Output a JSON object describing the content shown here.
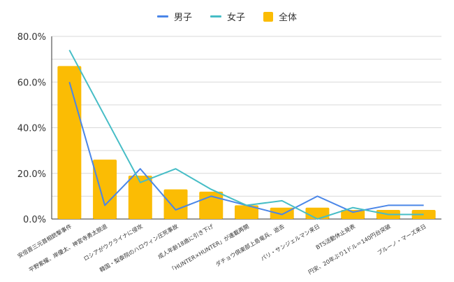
{
  "colors": {
    "male": "#4a86e8",
    "female": "#46bdc6",
    "total": "#fbbc04",
    "grid": "#d9d9d9",
    "axis": "#333333"
  },
  "legend": {
    "male": "男子",
    "female": "女子",
    "total": "全体"
  },
  "chart_data": {
    "type": "bar",
    "title": "",
    "xlabel": "",
    "ylabel": "",
    "ylim": [
      0,
      80
    ],
    "yticks": [
      "0.0%",
      "20.0%",
      "40.0%",
      "60.0%",
      "80.0%"
    ],
    "grid": true,
    "legend_position": "top-center",
    "categories": [
      "安倍晋三元首相銃撃事件",
      "平野紫耀、岸優太、神宮寺勇太脱退",
      "ロシアがウクライナに侵攻",
      "韓国・梨泰院のハロウィン圧死事故",
      "成人年齢18歳に引き下げ",
      "「HUNTER×HUNTER」が連載再開",
      "ダチョウ倶楽部上島竜兵、逝去",
      "パリ・サンジェルマン来日",
      "BTS活動休止発表",
      "円安、20年ぶり1ドル＝140円台突破",
      "ブルーノ・マーズ来日"
    ],
    "series": [
      {
        "name": "全体",
        "kind": "bar",
        "values": [
          67,
          26,
          19,
          13,
          12,
          6,
          5,
          5,
          4,
          4,
          4
        ]
      },
      {
        "name": "男子",
        "kind": "line",
        "values": [
          60,
          6,
          22,
          4,
          10,
          6,
          2,
          10,
          3,
          6,
          6
        ]
      },
      {
        "name": "女子",
        "kind": "line",
        "values": [
          74,
          45,
          16,
          22,
          13,
          6,
          8,
          0,
          5,
          2,
          2
        ]
      }
    ]
  }
}
